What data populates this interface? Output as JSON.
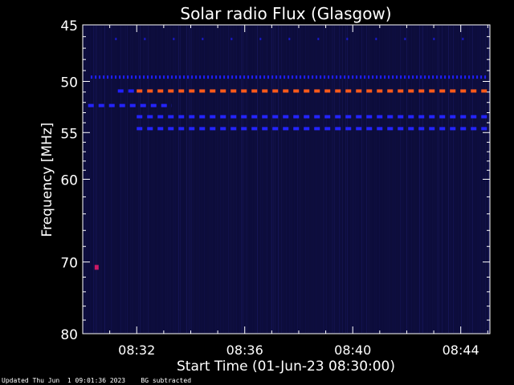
{
  "chart_data": {
    "type": "heatmap",
    "title": "Solar radio Flux (Glasgow)",
    "xlabel": "Start Time (01-Jun-23 08:30:00)",
    "ylabel": "Frequency [MHz]",
    "x_start": "08:30:00",
    "x_end": "08:45:05",
    "xlim_minutes": [
      0,
      15.08
    ],
    "x_ticks": [
      "08:32",
      "08:36",
      "08:40",
      "08:44"
    ],
    "x_tick_minutes": [
      2,
      6,
      10,
      14
    ],
    "ylim": [
      45,
      80
    ],
    "y_scale": "log",
    "y_ticks": [
      45,
      50,
      55,
      60,
      70,
      80
    ],
    "background": "#0c0c3a",
    "features": [
      {
        "kind": "band",
        "freq": 46.2,
        "t_from": 1.2,
        "t_to": 15.0,
        "color": "#1a1acc",
        "dash": "sparse"
      },
      {
        "kind": "band",
        "freq": 49.6,
        "t_from": 0.3,
        "t_to": 15.0,
        "color": "#2020ff",
        "dash": "dotted"
      },
      {
        "kind": "band",
        "freq": 50.9,
        "t_from": 2.0,
        "t_to": 15.0,
        "color": "#ff5a1a",
        "dash": "dashed"
      },
      {
        "kind": "band",
        "freq": 50.9,
        "t_from": 1.3,
        "t_to": 2.0,
        "color": "#2020ff",
        "dash": "dashed"
      },
      {
        "kind": "band",
        "freq": 52.3,
        "t_from": 0.2,
        "t_to": 3.3,
        "color": "#2424ff",
        "dash": "dashed"
      },
      {
        "kind": "band",
        "freq": 53.4,
        "t_from": 2.0,
        "t_to": 15.0,
        "color": "#2424ff",
        "dash": "dashed"
      },
      {
        "kind": "band",
        "freq": 54.6,
        "t_from": 2.0,
        "t_to": 15.0,
        "color": "#2424ff",
        "dash": "dashed"
      },
      {
        "kind": "spot",
        "freq": 70.7,
        "t": 0.5,
        "color": "#cc1a66"
      }
    ]
  },
  "footer": {
    "updated": "Updated Thu Jun  1 09:01:36 2023",
    "bg_note": "BG subtracted"
  }
}
